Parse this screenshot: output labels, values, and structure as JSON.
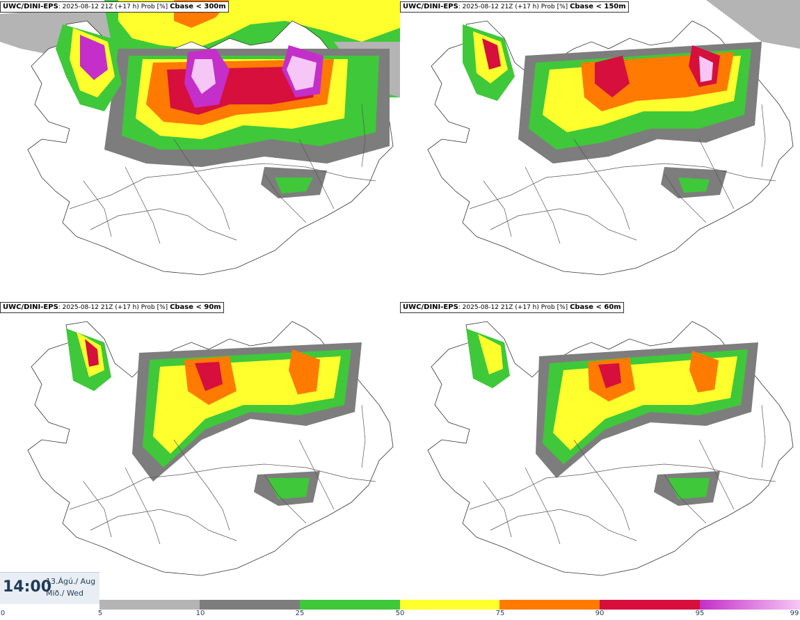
{
  "panels": [
    {
      "model": "UWC/DINI-EPS",
      "meta": "2025-08-12 21Z (+17 h) Prob [%]",
      "threshold": "Cbase < 300m"
    },
    {
      "model": "UWC/DINI-EPS",
      "meta": "2025-08-12 21Z (+17 h) Prob [%]",
      "threshold": "Cbase < 150m"
    },
    {
      "model": "UWC/DINI-EPS",
      "meta": "2025-08-12 21Z (+17 h) Prob [%]",
      "threshold": "Cbase < 90m"
    },
    {
      "model": "UWC/DINI-EPS",
      "meta": "2025-08-12 21Z (+17 h) Prob [%]",
      "threshold": "Cbase < 60m"
    }
  ],
  "valid_time": {
    "time": "14:00",
    "date_line": "13.Ágú./ Aug",
    "day_line": "Mið./ Wed"
  },
  "legend": {
    "ticks": [
      "0",
      "5",
      "10",
      "25",
      "50",
      "75",
      "90",
      "95",
      "99"
    ],
    "colors": [
      "#ffffff",
      "#b4b4b4",
      "#7d7d7d",
      "#3fc83a",
      "#ffff2e",
      "#ff7a00",
      "#d60f3c",
      "#c32fc8",
      "#f6c7f6"
    ]
  }
}
